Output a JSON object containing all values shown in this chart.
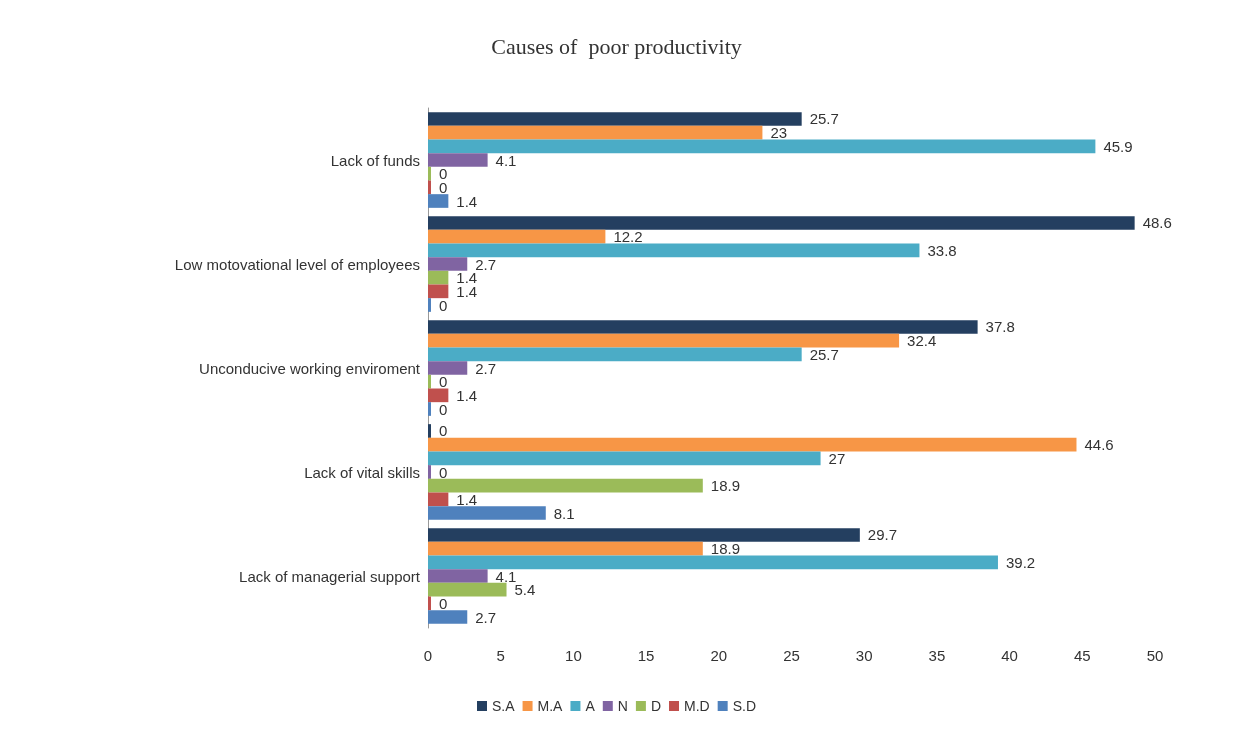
{
  "chart_data": {
    "type": "bar",
    "orientation": "horizontal",
    "title": "Causes of  poor productivity",
    "categories": [
      "Lack of funds",
      "Low motovational level of employees",
      "Unconducive working enviroment",
      "Lack of vital skills",
      "Lack of managerial support"
    ],
    "series": [
      {
        "name": "S.A",
        "color": "#243f60",
        "values": [
          25.7,
          48.6,
          37.8,
          0,
          29.7
        ]
      },
      {
        "name": "M.A",
        "color": "#f79646",
        "values": [
          23,
          12.2,
          32.4,
          44.6,
          18.9
        ]
      },
      {
        "name": "A",
        "color": "#4bacc6",
        "values": [
          45.9,
          33.8,
          25.7,
          27,
          39.2
        ]
      },
      {
        "name": "N",
        "color": "#8064a2",
        "values": [
          4.1,
          2.7,
          2.7,
          0,
          4.1
        ]
      },
      {
        "name": "D",
        "color": "#9bbb59",
        "values": [
          0,
          1.4,
          0,
          18.9,
          5.4
        ]
      },
      {
        "name": "M.D",
        "color": "#c0504d",
        "values": [
          0,
          1.4,
          1.4,
          1.4,
          0
        ]
      },
      {
        "name": "S.D",
        "color": "#4f81bd",
        "values": [
          1.4,
          0,
          0,
          8.1,
          2.7
        ]
      }
    ],
    "xlim": [
      0,
      50
    ],
    "xticks": [
      0,
      5,
      10,
      15,
      20,
      25,
      30,
      35,
      40,
      45,
      50
    ],
    "grid": false,
    "legend": "bottom",
    "data_labels": true
  }
}
